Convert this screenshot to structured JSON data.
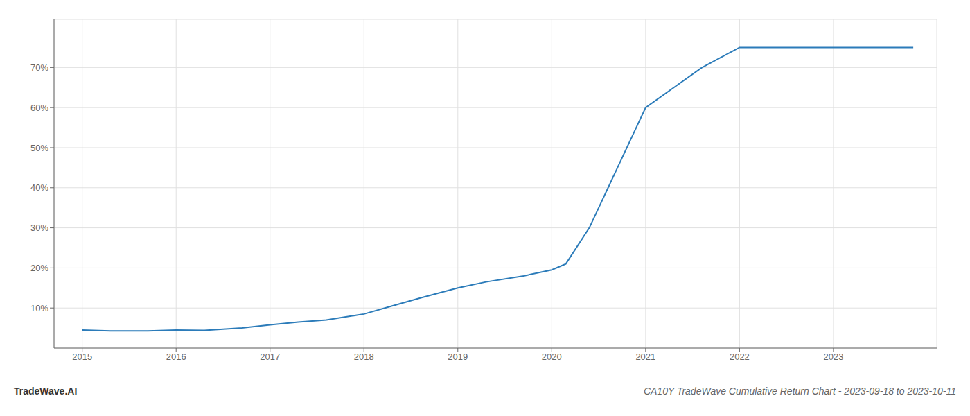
{
  "chart_data": {
    "type": "line",
    "title": "CA10Y TradeWave Cumulative Return Chart - 2023-09-18 to 2023-10-11",
    "annotations": [
      "TradeWave.AI"
    ],
    "x": [
      2015.0,
      2015.3,
      2015.7,
      2016.0,
      2016.3,
      2016.7,
      2017.0,
      2017.3,
      2017.6,
      2018.0,
      2018.3,
      2018.6,
      2019.0,
      2019.3,
      2019.7,
      2020.0,
      2020.1,
      2020.15,
      2020.4,
      2020.7,
      2021.0,
      2021.3,
      2021.6,
      2022.0,
      2022.3,
      2022.6,
      2023.0,
      2023.5,
      2023.85
    ],
    "values": [
      4.5,
      4.3,
      4.3,
      4.5,
      4.4,
      5.0,
      5.8,
      6.5,
      7.0,
      8.5,
      10.5,
      12.5,
      15.0,
      16.5,
      18.0,
      19.5,
      20.5,
      21.0,
      30.0,
      45.0,
      60.0,
      65.0,
      70.0,
      75.0,
      75.0,
      75.0,
      75.0,
      75.0,
      75.0
    ],
    "color": "#2b7bb9",
    "xlim": [
      2014.7,
      2024.1
    ],
    "xticks": [
      2015,
      2016,
      2017,
      2018,
      2019,
      2020,
      2021,
      2022,
      2023
    ],
    "ylim": [
      0,
      82
    ],
    "yticks": [
      {
        "value": 10,
        "label": "10%"
      },
      {
        "value": 20,
        "label": "20%"
      },
      {
        "value": 30,
        "label": "30%"
      },
      {
        "value": 40,
        "label": "40%"
      },
      {
        "value": 50,
        "label": "50%"
      },
      {
        "value": 60,
        "label": "60%"
      },
      {
        "value": 70,
        "label": "70%"
      }
    ],
    "grid": true
  }
}
